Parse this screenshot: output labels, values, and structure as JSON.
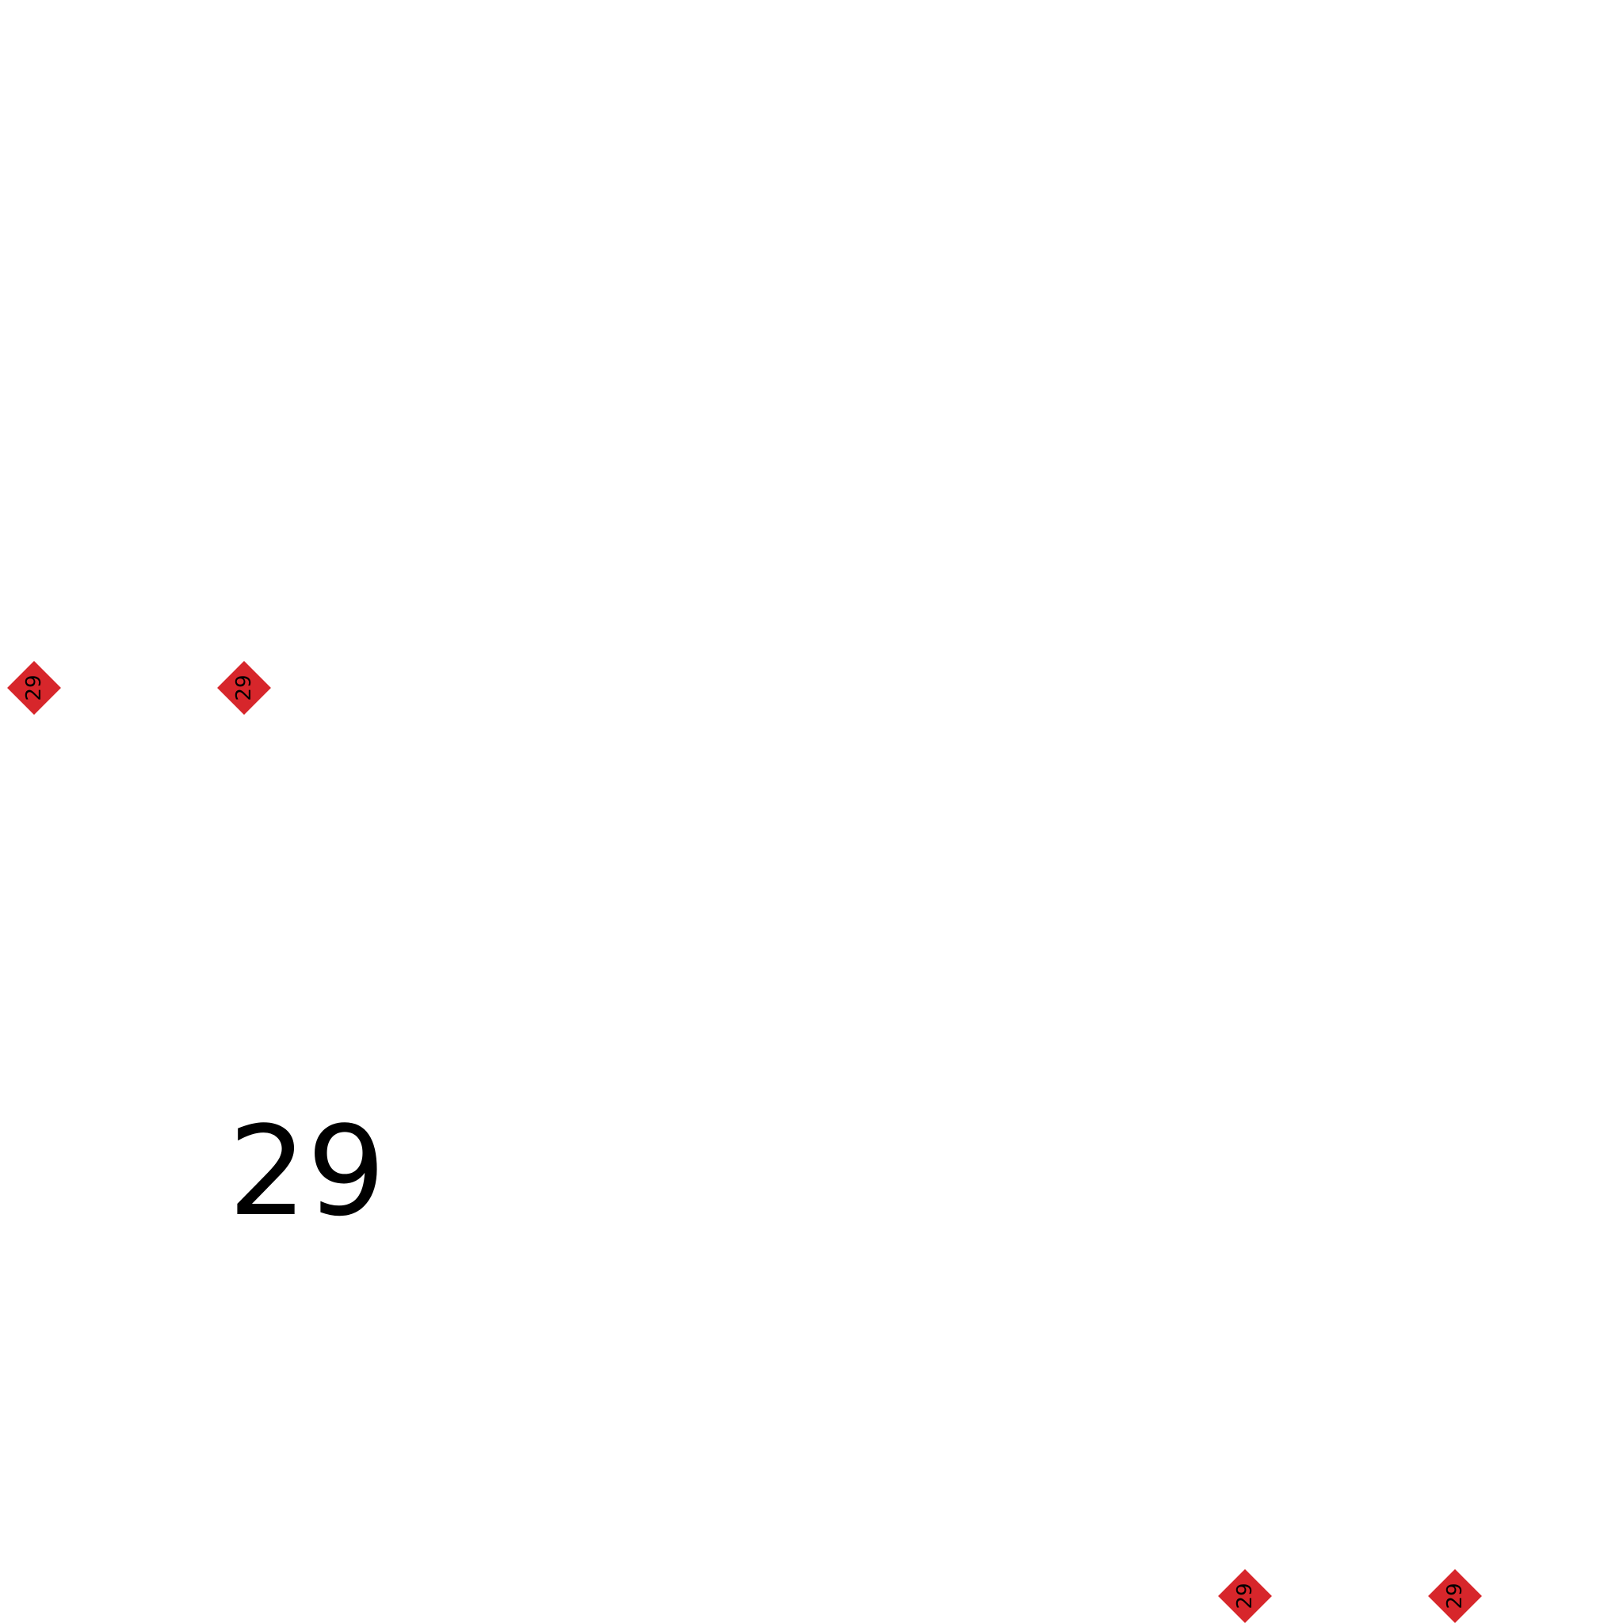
{
  "accent_color": "#d7262b",
  "text_color": "#000000",
  "background_color": "#ffffff",
  "markers": [
    {
      "label": "29",
      "icon": "diamond-icon"
    },
    {
      "label": "29",
      "icon": "diamond-icon"
    },
    {
      "label": "29",
      "icon": "diamond-icon"
    },
    {
      "label": "29",
      "icon": "diamond-icon"
    }
  ],
  "main_label": "29"
}
